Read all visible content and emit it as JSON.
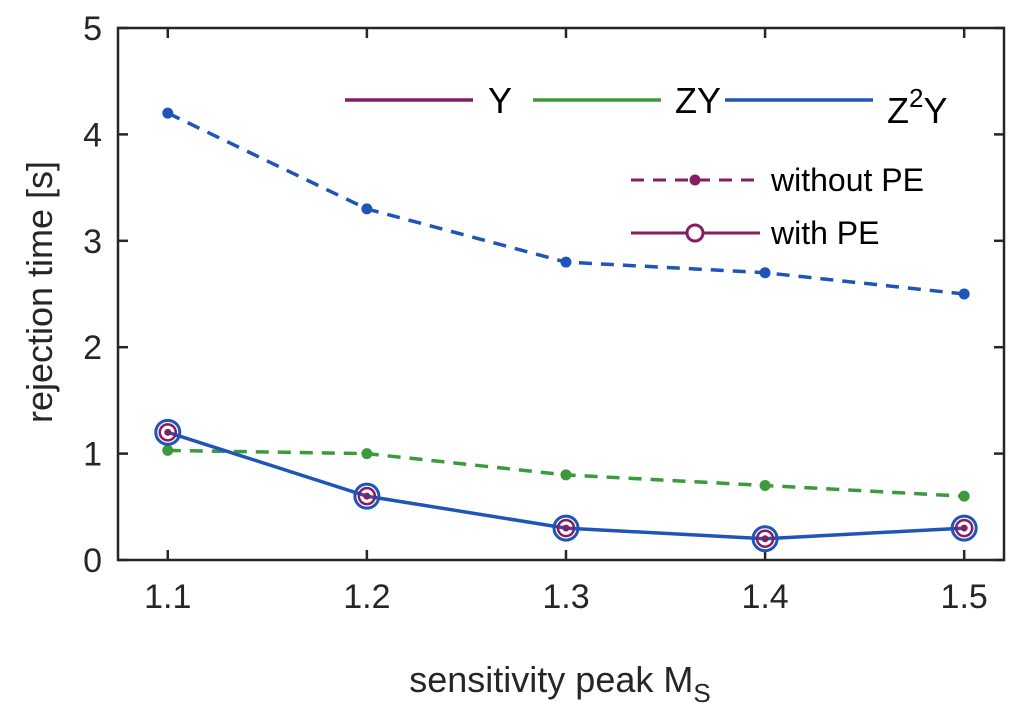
{
  "chart_data": {
    "type": "line",
    "xlabel": {
      "main": "sensitivity peak M",
      "sub": "S"
    },
    "ylabel": "rejection time [s]",
    "xlim": [
      1.075,
      1.52
    ],
    "ylim": [
      0,
      5
    ],
    "x": [
      1.1,
      1.2,
      1.3,
      1.4,
      1.5
    ],
    "x_ticks": [
      "1.1",
      "1.2",
      "1.3",
      "1.4",
      "1.5"
    ],
    "y_ticks": [
      "0",
      "1",
      "2",
      "3",
      "4",
      "5"
    ],
    "colors": {
      "Y": "#861d62",
      "ZY": "#3c9a3c",
      "Z2Y": "#1f55b8"
    },
    "series": [
      {
        "name": "Z²Y without PE",
        "key": "Z2Y",
        "style": "dashed",
        "values": [
          4.2,
          3.3,
          2.8,
          2.7,
          2.5
        ]
      },
      {
        "name": "ZY without PE",
        "key": "ZY",
        "style": "dashed",
        "values": [
          1.03,
          1.0,
          0.8,
          0.7,
          0.6
        ]
      },
      {
        "name": "Z²Y with PE",
        "key": "Z2Y",
        "style": "solid",
        "values": [
          1.2,
          0.6,
          0.3,
          0.2,
          0.3
        ]
      }
    ],
    "legend": {
      "systems": [
        {
          "label": "Y",
          "key": "Y"
        },
        {
          "label": "ZY",
          "key": "ZY"
        },
        {
          "label_main": "Z",
          "label_sup": "2",
          "label_tail": "Y",
          "key": "Z2Y"
        }
      ],
      "methods": [
        {
          "label": "without PE",
          "style": "dashed"
        },
        {
          "label": "with PE",
          "style": "solid"
        }
      ]
    }
  }
}
